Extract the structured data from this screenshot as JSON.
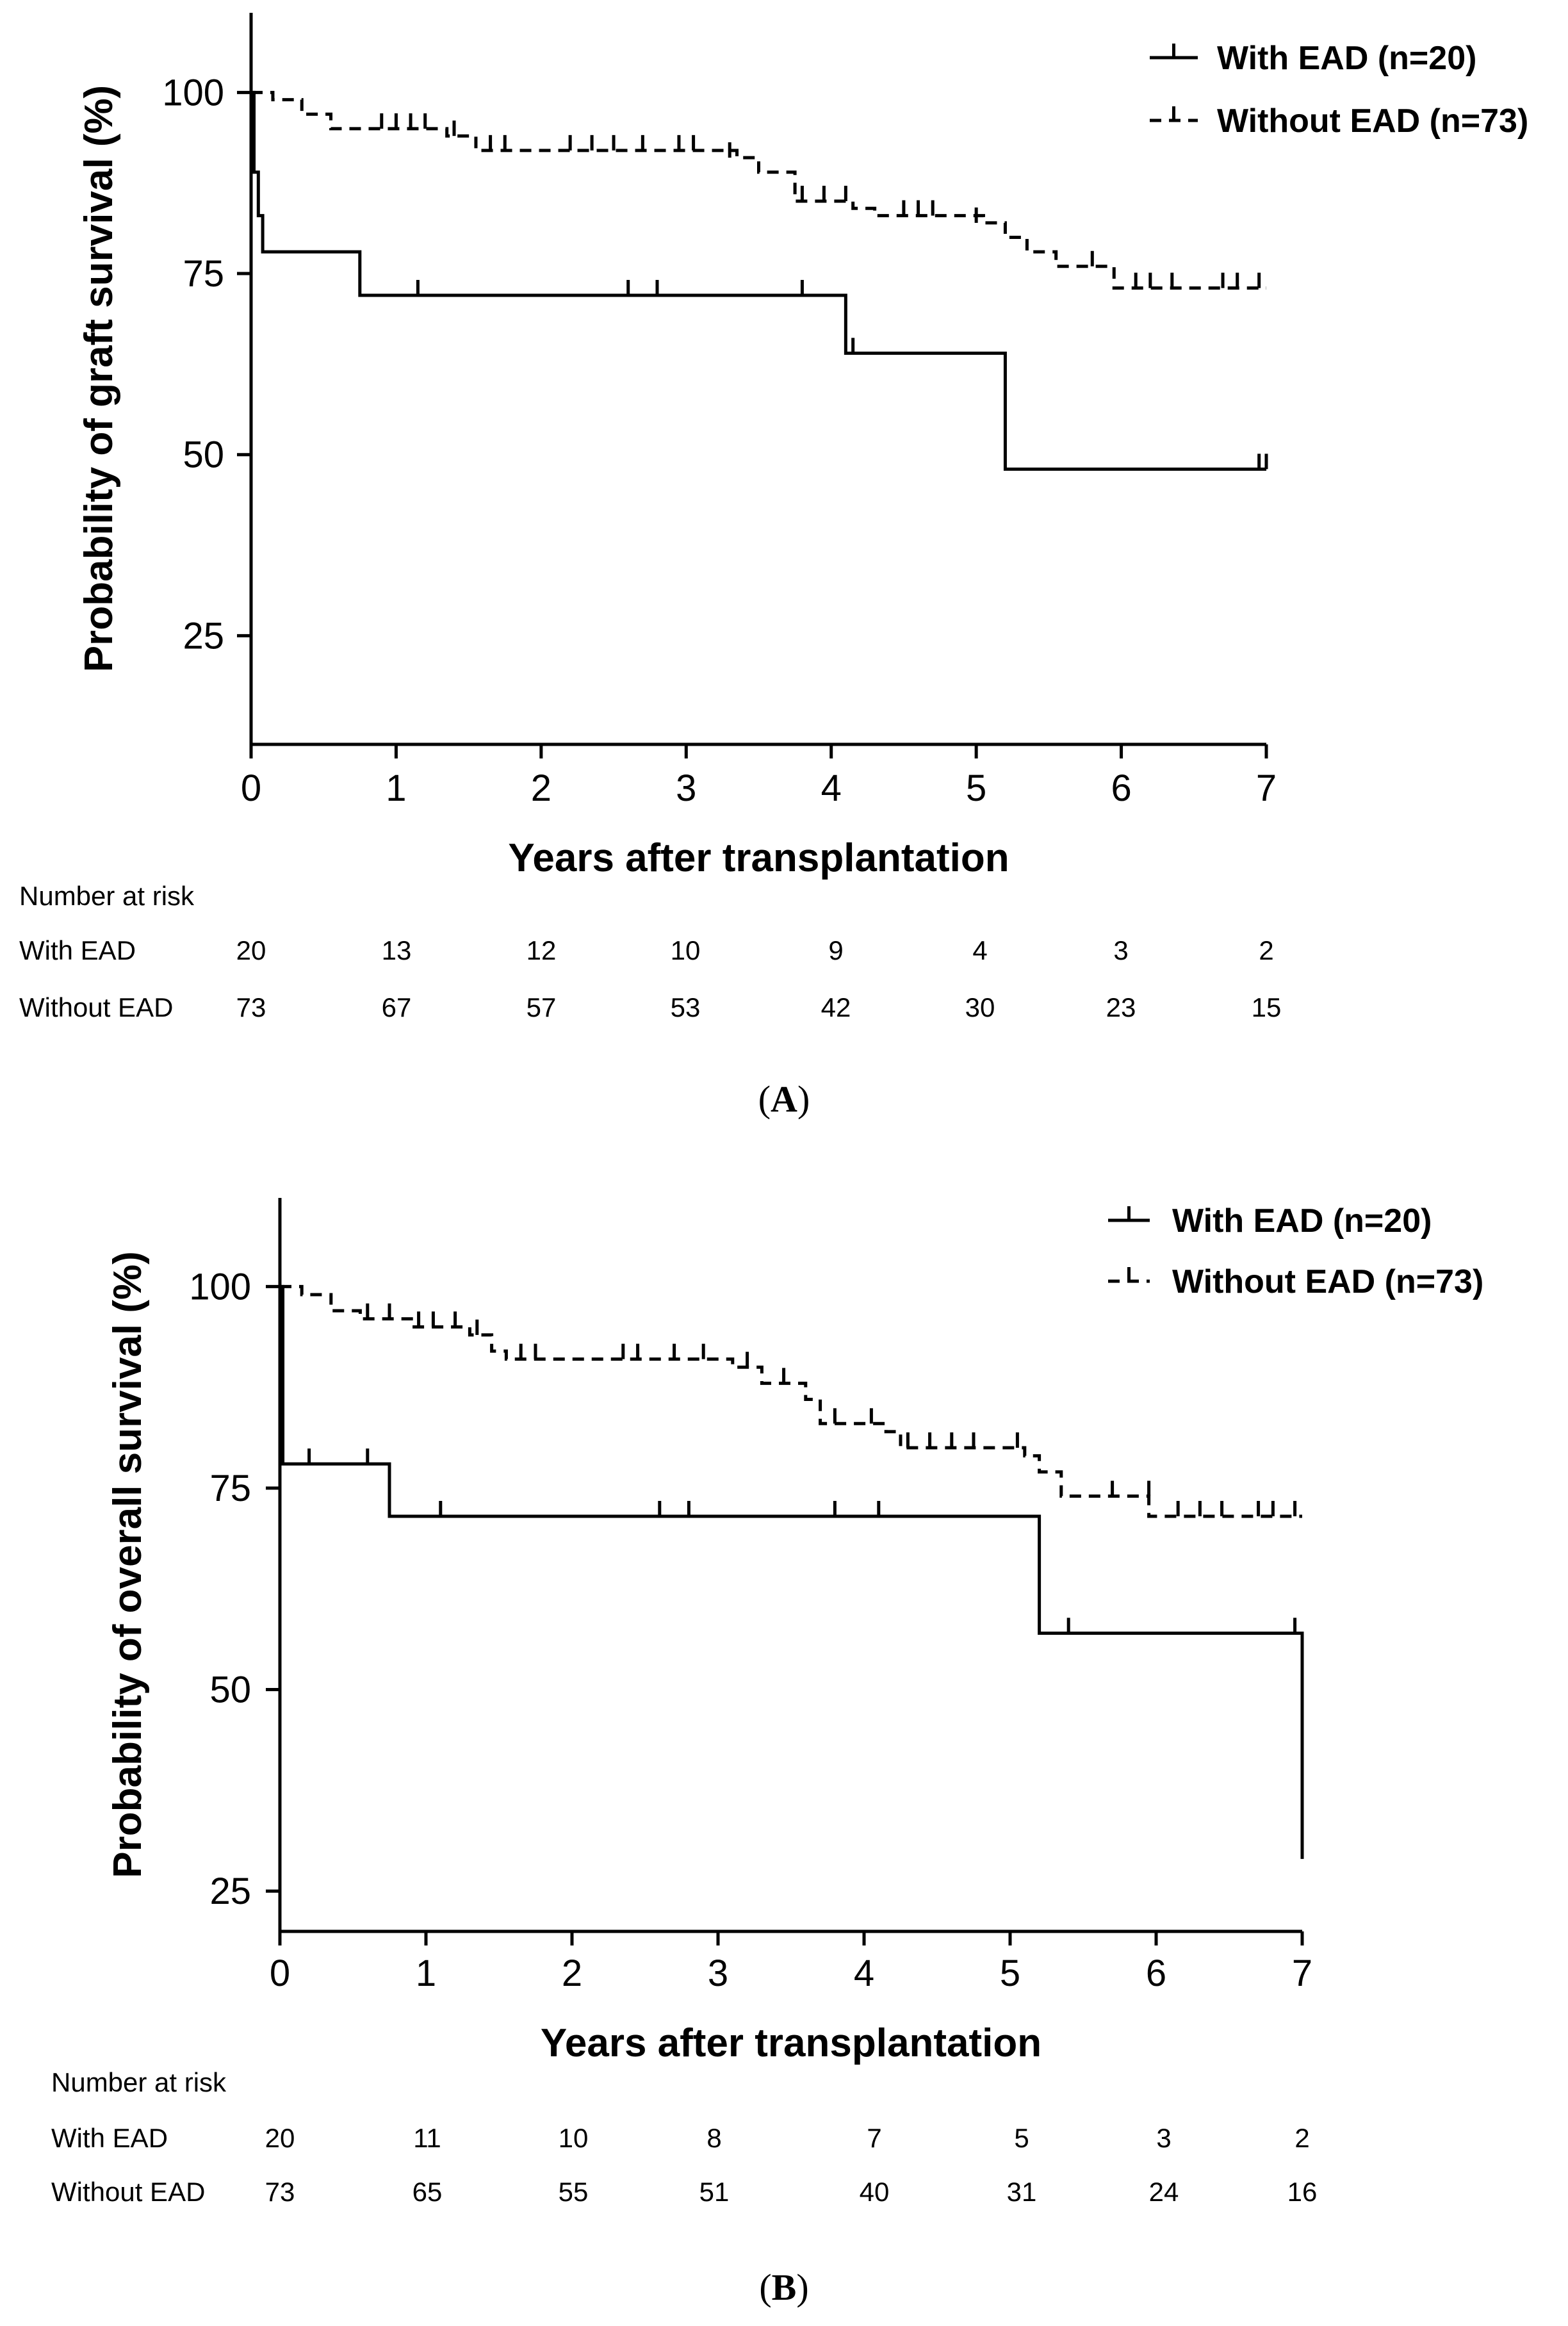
{
  "chart_data": [
    {
      "type": "line",
      "panel_label": "A",
      "xlabel": "Years after transplantation",
      "ylabel": "Probability of graft survival (%)",
      "xlim": [
        0,
        7
      ],
      "ylim": [
        10,
        111
      ],
      "x_ticks": [
        0,
        1,
        2,
        3,
        4,
        5,
        6,
        7
      ],
      "y_ticks": [
        25,
        50,
        75,
        100
      ],
      "legend": [
        {
          "label": "With EAD (n=20)",
          "style": "solid"
        },
        {
          "label": "Without EAD (n=73)",
          "style": "dashed"
        }
      ],
      "series": [
        {
          "name": "With EAD (n=20)",
          "style": "solid",
          "steps": [
            [
              0,
              100
            ],
            [
              0.02,
              89
            ],
            [
              0.05,
              83
            ],
            [
              0.08,
              78
            ],
            [
              0.75,
              72
            ],
            [
              4.1,
              64
            ],
            [
              5.2,
              48
            ],
            [
              7,
              48
            ]
          ],
          "censored": [
            [
              1.15,
              72
            ],
            [
              2.6,
              72
            ],
            [
              2.8,
              72
            ],
            [
              3.8,
              72
            ],
            [
              4.15,
              64
            ],
            [
              6.95,
              48
            ],
            [
              7.0,
              48
            ]
          ]
        },
        {
          "name": "Without EAD (n=73)",
          "style": "dashed",
          "steps": [
            [
              0,
              100
            ],
            [
              0.15,
              99
            ],
            [
              0.35,
              97
            ],
            [
              0.55,
              95
            ],
            [
              1.35,
              94
            ],
            [
              1.55,
              92
            ],
            [
              3.35,
              91
            ],
            [
              3.5,
              89
            ],
            [
              3.75,
              85
            ],
            [
              4.15,
              84
            ],
            [
              4.3,
              83
            ],
            [
              5.05,
              82
            ],
            [
              5.2,
              80
            ],
            [
              5.35,
              78
            ],
            [
              5.55,
              76
            ],
            [
              5.95,
              73
            ],
            [
              7,
              73
            ]
          ],
          "censored": [
            [
              0.9,
              95
            ],
            [
              1.0,
              95
            ],
            [
              1.1,
              95
            ],
            [
              1.2,
              95
            ],
            [
              1.4,
              94
            ],
            [
              1.65,
              92
            ],
            [
              1.75,
              92
            ],
            [
              2.2,
              92
            ],
            [
              2.35,
              92
            ],
            [
              2.5,
              92
            ],
            [
              2.7,
              92
            ],
            [
              2.95,
              92
            ],
            [
              3.05,
              92
            ],
            [
              3.3,
              91
            ],
            [
              3.8,
              85
            ],
            [
              3.95,
              85
            ],
            [
              4.1,
              85
            ],
            [
              4.5,
              83
            ],
            [
              4.6,
              83
            ],
            [
              4.7,
              83
            ],
            [
              5.0,
              82
            ],
            [
              5.8,
              76
            ],
            [
              6.1,
              73
            ],
            [
              6.2,
              73
            ],
            [
              6.35,
              73
            ],
            [
              6.7,
              73
            ],
            [
              6.8,
              73
            ],
            [
              6.95,
              73
            ]
          ]
        }
      ],
      "number_at_risk": {
        "title": "Number at risk",
        "rows": [
          {
            "label": "With EAD",
            "values": [
              20,
              13,
              12,
              10,
              9,
              4,
              3,
              2
            ]
          },
          {
            "label": "Without EAD",
            "values": [
              73,
              67,
              57,
              53,
              42,
              30,
              23,
              15
            ]
          }
        ]
      }
    },
    {
      "type": "line",
      "panel_label": "B",
      "xlabel": "Years after transplantation",
      "ylabel": "Probability of overall survival (%)",
      "xlim": [
        0,
        7
      ],
      "ylim": [
        20,
        111
      ],
      "x_ticks": [
        0,
        1,
        2,
        3,
        4,
        5,
        6,
        7
      ],
      "y_ticks": [
        25,
        50,
        75,
        100
      ],
      "legend": [
        {
          "label": "With EAD (n=20)",
          "style": "solid"
        },
        {
          "label": "Without EAD (n=73)",
          "style": "dashed"
        }
      ],
      "series": [
        {
          "name": "With EAD (n=20)",
          "style": "solid",
          "steps": [
            [
              0,
              100
            ],
            [
              0.02,
              78
            ],
            [
              0.75,
              71.5
            ],
            [
              5.2,
              57
            ],
            [
              7.0,
              29
            ]
          ],
          "censored": [
            [
              0.2,
              78
            ],
            [
              0.6,
              78
            ],
            [
              1.1,
              71.5
            ],
            [
              2.6,
              71.5
            ],
            [
              2.8,
              71.5
            ],
            [
              3.8,
              71.5
            ],
            [
              4.1,
              71.5
            ],
            [
              5.4,
              57
            ],
            [
              6.95,
              57
            ],
            [
              7.0,
              29
            ]
          ]
        },
        {
          "name": "Without EAD (n=73)",
          "style": "dashed",
          "steps": [
            [
              0,
              100
            ],
            [
              0.15,
              99
            ],
            [
              0.35,
              97
            ],
            [
              0.55,
              96
            ],
            [
              0.9,
              95
            ],
            [
              1.3,
              94
            ],
            [
              1.45,
              92
            ],
            [
              1.55,
              91
            ],
            [
              3.1,
              90
            ],
            [
              3.3,
              88
            ],
            [
              3.6,
              86
            ],
            [
              3.7,
              83
            ],
            [
              4.15,
              82
            ],
            [
              4.25,
              80
            ],
            [
              5.1,
              79
            ],
            [
              5.2,
              77
            ],
            [
              5.35,
              74
            ],
            [
              5.95,
              71.5
            ],
            [
              7,
              71.5
            ]
          ],
          "censored": [
            [
              0.6,
              96
            ],
            [
              0.75,
              96
            ],
            [
              0.95,
              95
            ],
            [
              1.05,
              95
            ],
            [
              1.2,
              95
            ],
            [
              1.35,
              94
            ],
            [
              1.65,
              91
            ],
            [
              1.75,
              91
            ],
            [
              2.35,
              91
            ],
            [
              2.45,
              91
            ],
            [
              2.7,
              91
            ],
            [
              2.9,
              91
            ],
            [
              3.2,
              90
            ],
            [
              3.45,
              88
            ],
            [
              3.8,
              83
            ],
            [
              4.05,
              83
            ],
            [
              4.3,
              80
            ],
            [
              4.45,
              80
            ],
            [
              4.6,
              80
            ],
            [
              4.75,
              80
            ],
            [
              5.05,
              80
            ],
            [
              5.7,
              74
            ],
            [
              5.95,
              74
            ],
            [
              6.15,
              71.5
            ],
            [
              6.3,
              71.5
            ],
            [
              6.45,
              71.5
            ],
            [
              6.7,
              71.5
            ],
            [
              6.8,
              71.5
            ],
            [
              6.95,
              71.5
            ]
          ]
        }
      ],
      "number_at_risk": {
        "title": "Number at risk",
        "rows": [
          {
            "label": "With EAD",
            "values": [
              20,
              11,
              10,
              8,
              7,
              5,
              3,
              2
            ]
          },
          {
            "label": "Without EAD",
            "values": [
              73,
              65,
              55,
              51,
              40,
              31,
              24,
              16
            ]
          }
        ]
      }
    }
  ]
}
